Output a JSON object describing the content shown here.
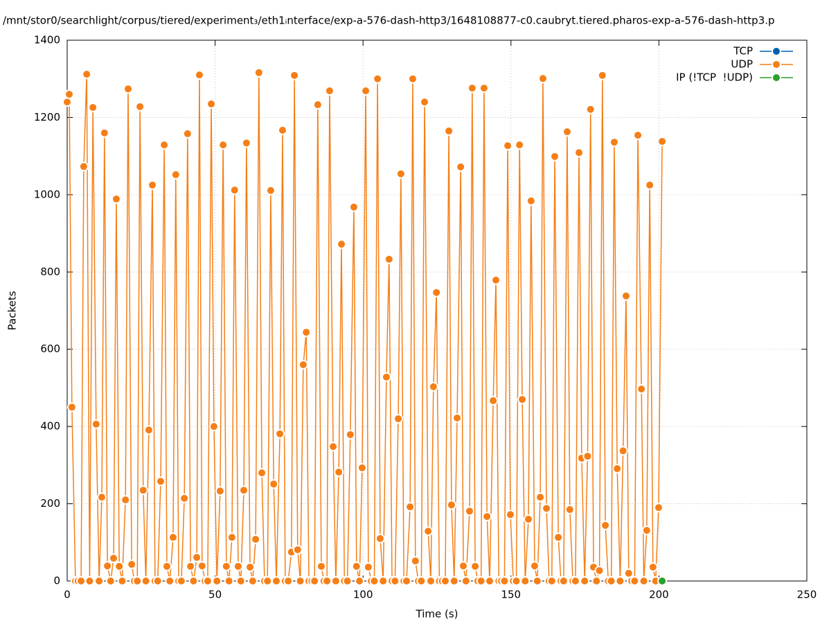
{
  "chart_data": {
    "type": "line",
    "title": "/mnt/stor0/searchlight/corpus/tiered/experiment₃/eth1ᵢnterface/exp-a-576-dash-http3/1648108877-c0.caubryt.tiered.pharos-exp-a-576-dash-http3.p",
    "x_label": "Time (s)",
    "y_label": "Packets",
    "xlim": [
      0,
      250
    ],
    "xticks": [
      0,
      50,
      100,
      150,
      200,
      250
    ],
    "ylim": [
      0,
      1400
    ],
    "yticks": [
      0,
      200,
      400,
      600,
      800,
      1000,
      1200,
      1400
    ],
    "grid": true,
    "legend": "top-right",
    "series": [
      {
        "name": "TCP",
        "color": "#0060ad",
        "x": [],
        "values": []
      },
      {
        "name": "UDP",
        "color": "#f57f17",
        "x": [
          0,
          0.7,
          1.6,
          2.8,
          3.7,
          4.7,
          5.6,
          6.6,
          7.6,
          8.7,
          9.8,
          10.8,
          11.7,
          12.6,
          13.6,
          14.7,
          15.7,
          16.6,
          17.6,
          18.6,
          19.7,
          20.6,
          21.8,
          22.7,
          23.7,
          24.6,
          25.7,
          26.6,
          27.6,
          28.8,
          29.7,
          30.6,
          31.6,
          32.8,
          33.7,
          34.7,
          35.8,
          36.7,
          37.7,
          38.6,
          39.6,
          40.7,
          41.7,
          42.7,
          43.8,
          44.7,
          45.6,
          46.6,
          47.5,
          48.7,
          49.6,
          50.6,
          51.7,
          52.7,
          53.8,
          54.7,
          55.7,
          56.6,
          57.8,
          58.7,
          59.7,
          60.6,
          61.8,
          62.7,
          63.7,
          64.8,
          65.8,
          66.7,
          67.7,
          68.8,
          69.8,
          70.7,
          71.9,
          72.8,
          73.7,
          74.7,
          75.8,
          76.8,
          77.9,
          78.8,
          79.8,
          80.8,
          81.7,
          82.7,
          83.6,
          84.7,
          85.9,
          86.8,
          87.8,
          88.7,
          89.9,
          90.8,
          91.8,
          92.7,
          93.7,
          94.7,
          95.7,
          96.9,
          97.8,
          98.8,
          99.7,
          100.9,
          101.8,
          102.8,
          103.8,
          104.9,
          105.8,
          106.8,
          107.9,
          108.8,
          109.8,
          110.8,
          111.9,
          112.8,
          113.8,
          114.7,
          115.9,
          116.8,
          117.7,
          118.7,
          119.7,
          120.8,
          122.0,
          122.9,
          123.8,
          124.8,
          125.8,
          126.8,
          127.8,
          129.0,
          129.9,
          130.8,
          131.8,
          133.0,
          133.9,
          134.8,
          136.0,
          136.9,
          137.9,
          138.8,
          139.9,
          140.9,
          141.9,
          142.8,
          144.0,
          144.9,
          145.9,
          146.8,
          147.8,
          148.9,
          149.8,
          150.8,
          151.8,
          152.9,
          153.8,
          154.8,
          155.9,
          156.8,
          158.0,
          158.9,
          159.9,
          160.8,
          162.0,
          162.9,
          163.8,
          164.8,
          166.0,
          166.9,
          167.8,
          169.0,
          169.9,
          170.9,
          171.8,
          173.0,
          173.9,
          174.9,
          175.9,
          176.9,
          177.9,
          178.9,
          179.9,
          180.9,
          181.9,
          182.9,
          183.9,
          184.9,
          185.9,
          186.9,
          187.9,
          188.9,
          189.8,
          190.8,
          191.8,
          192.9,
          194.1,
          194.9,
          195.9,
          196.9,
          198.0,
          198.9,
          199.9,
          201.1
        ],
        "values": [
          1240,
          1260,
          450,
          0,
          0,
          0,
          1073,
          1312,
          0,
          1226,
          406,
          0,
          217,
          1160,
          39,
          0,
          59,
          989,
          38,
          0,
          210,
          1274,
          43,
          0,
          0,
          1228,
          235,
          0,
          391,
          1025,
          0,
          0,
          258,
          1129,
          38,
          0,
          113,
          1052,
          0,
          0,
          214,
          1158,
          38,
          0,
          61,
          1310,
          39,
          0,
          0,
          1235,
          400,
          0,
          233,
          1129,
          38,
          0,
          113,
          1012,
          38,
          0,
          235,
          1134,
          36,
          0,
          108,
          1316,
          280,
          0,
          0,
          1011,
          251,
          0,
          381,
          1167,
          0,
          0,
          75,
          1309,
          81,
          0,
          560,
          644,
          0,
          0,
          0,
          1233,
          38,
          0,
          0,
          1269,
          348,
          0,
          282,
          872,
          0,
          0,
          379,
          968,
          38,
          0,
          293,
          1269,
          36,
          0,
          0,
          1300,
          110,
          0,
          528,
          833,
          0,
          0,
          420,
          1054,
          0,
          0,
          192,
          1300,
          52,
          0,
          0,
          1240,
          129,
          0,
          503,
          747,
          0,
          0,
          0,
          1165,
          197,
          0,
          422,
          1072,
          39,
          0,
          181,
          1276,
          38,
          0,
          0,
          1276,
          167,
          0,
          467,
          779,
          0,
          0,
          0,
          1127,
          172,
          0,
          0,
          1129,
          470,
          0,
          160,
          984,
          39,
          0,
          217,
          1301,
          188,
          0,
          0,
          1099,
          113,
          0,
          0,
          1163,
          185,
          0,
          0,
          1109,
          318,
          0,
          323,
          1221,
          36,
          0,
          27,
          1309,
          144,
          0,
          0,
          1136,
          291,
          0,
          337,
          738,
          20,
          0,
          0,
          1154,
          497,
          0,
          131,
          1025,
          36,
          0,
          190,
          1138
        ]
      },
      {
        "name": "IP (!TCP  !UDP)",
        "color": "#2ca02c",
        "x": [
          201.1
        ],
        "values": [
          0
        ]
      }
    ]
  }
}
